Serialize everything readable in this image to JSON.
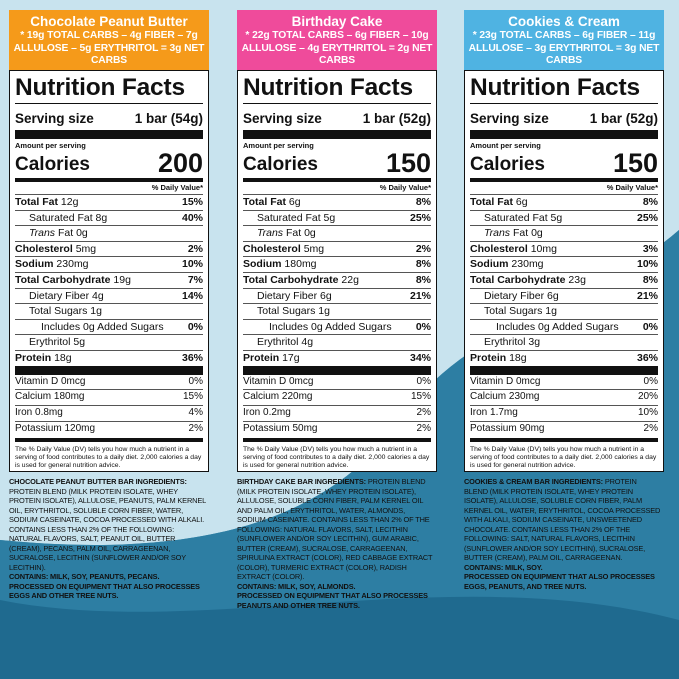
{
  "colors": {
    "background": "#3d8fb1",
    "wave_light": "#c8e3ee",
    "wave_dark": "#2d7ea3",
    "chocolate_peanut_butter": "#f59a1a",
    "birthday_cake": "#ef4b9b",
    "cookies_and_cream": "#4fb3e2"
  },
  "columns": [
    {
      "flavor": "Chocolate Peanut Butter",
      "carbs_line": "* 19g TOTAL CARBS – 4g FIBER – 7g ALLULOSE – 5g ERYTHRITOL = 3g NET CARBS",
      "title": "Nutrition Facts",
      "serving_label": "Serving size",
      "serving_value": "1 bar (54g)",
      "amount_per_serving": "Amount per serving",
      "calories_label": "Calories",
      "calories_value": "200",
      "daily_value_header": "% Daily Value*",
      "total_fat": {
        "label": "Total Fat",
        "amount": "12g",
        "pct": "15%"
      },
      "saturated_fat": {
        "label": "Saturated Fat",
        "amount": "8g",
        "pct": "40%"
      },
      "trans_fat": {
        "label": "Trans",
        "label_rest": "Fat",
        "amount": "0g"
      },
      "cholesterol": {
        "label": "Cholesterol",
        "amount": "5mg",
        "pct": "2%"
      },
      "sodium": {
        "label": "Sodium",
        "amount": "230mg",
        "pct": "10%"
      },
      "total_carb": {
        "label": "Total Carbohydrate",
        "amount": "19g",
        "pct": "7%"
      },
      "fiber": {
        "label": "Dietary Fiber",
        "amount": "4g",
        "pct": "14%"
      },
      "total_sugars": {
        "label": "Total Sugars",
        "amount": "1g"
      },
      "added_sugars": {
        "label": "Includes",
        "amount": "0g",
        "label_rest": "Added Sugars",
        "pct": "0%"
      },
      "erythritol": {
        "label": "Erythritol",
        "amount": "5g"
      },
      "protein": {
        "label": "Protein",
        "amount": "18g",
        "pct": "36%"
      },
      "vitamin_d": {
        "label": "Vitamin D",
        "amount": "0mcg",
        "pct": "0%"
      },
      "calcium": {
        "label": "Calcium",
        "amount": "180mg",
        "pct": "15%"
      },
      "iron": {
        "label": "Iron",
        "amount": "0.8mg",
        "pct": "4%"
      },
      "potassium": {
        "label": "Potassium",
        "amount": "120mg",
        "pct": "2%"
      },
      "footnote": "The % Daily Value (DV) tells you how much a nutrient in a serving of food contributes to a daily diet. 2,000 calories a day is used for general nutrition advice.",
      "ingredients_label": "CHOCOLATE PEANUT BUTTER BAR INGREDIENTS:",
      "ingredients_text": "PROTEIN BLEND (MILK PROTEIN ISOLATE, WHEY PROTEIN ISOLATE), ALLULOSE, PEANUTS, PALM KERNEL OIL, ERYTHRITOL, SOLUBLE CORN FIBER, WATER, SODIUM CASEINATE, COCOA PROCESSED WITH ALKALI. CONTAINS LESS THAN 2% OF THE FOLLOWING: NATURAL FLAVORS, SALT, PEANUT OIL, BUTTER (CREAM), PECANS, PALM OIL, CARRAGEENAN, SUCRALOSE, LECITHIN (SUNFLOWER AND/OR SOY LECITHIN).",
      "contains": "CONTAINS: MILK, SOY, PEANUTS, PECANS.",
      "processed": "PROCESSED ON EQUIPMENT THAT ALSO PROCESSES EGGS AND OTHER TREE NUTS."
    },
    {
      "flavor": "Birthday Cake",
      "carbs_line": "* 22g TOTAL CARBS – 6g FIBER – 10g ALLULOSE – 4g ERYTHRITOL = 2g NET CARBS",
      "title": "Nutrition Facts",
      "serving_label": "Serving size",
      "serving_value": "1 bar (52g)",
      "amount_per_serving": "Amount per serving",
      "calories_label": "Calories",
      "calories_value": "150",
      "daily_value_header": "% Daily Value*",
      "total_fat": {
        "label": "Total Fat",
        "amount": "6g",
        "pct": "8%"
      },
      "saturated_fat": {
        "label": "Saturated Fat",
        "amount": "5g",
        "pct": "25%"
      },
      "trans_fat": {
        "label": "Trans",
        "label_rest": "Fat",
        "amount": "0g"
      },
      "cholesterol": {
        "label": "Cholesterol",
        "amount": "5mg",
        "pct": "2%"
      },
      "sodium": {
        "label": "Sodium",
        "amount": "180mg",
        "pct": "8%"
      },
      "total_carb": {
        "label": "Total Carbohydrate",
        "amount": "22g",
        "pct": "8%"
      },
      "fiber": {
        "label": "Dietary Fiber",
        "amount": "6g",
        "pct": "21%"
      },
      "total_sugars": {
        "label": "Total Sugars",
        "amount": "1g"
      },
      "added_sugars": {
        "label": "Includes",
        "amount": "0g",
        "label_rest": "Added Sugars",
        "pct": "0%"
      },
      "erythritol": {
        "label": "Erythritol",
        "amount": "4g"
      },
      "protein": {
        "label": "Protein",
        "amount": "17g",
        "pct": "34%"
      },
      "vitamin_d": {
        "label": "Vitamin D",
        "amount": "0mcg",
        "pct": "0%"
      },
      "calcium": {
        "label": "Calcium",
        "amount": "220mg",
        "pct": "15%"
      },
      "iron": {
        "label": "Iron",
        "amount": "0.2mg",
        "pct": "2%"
      },
      "potassium": {
        "label": "Potassium",
        "amount": "50mg",
        "pct": "2%"
      },
      "footnote": "The % Daily Value (DV) tells you how much a nutrient in a serving of food contributes to a daily diet. 2,000 calories a day is used for general nutrition advice.",
      "ingredients_label": "BIRTHDAY CAKE BAR INGREDIENTS:",
      "ingredients_text": "PROTEIN BLEND (MILK PROTEIN ISOLATE, WHEY PROTEIN ISOLATE), ALLULOSE, SOLUBLE CORN FIBER, PALM KERNEL OIL AND PALM OIL, ERYTHRITOL, WATER, ALMONDS, SODIUM CASEINATE. CONTAINS LESS THAN 2% OF THE FOLLOWING: NATURAL FLAVORS, SALT, LECITHIN (SUNFLOWER AND/OR SOY LECITHIN), GUM ARABIC, BUTTER (CREAM), SUCRALOSE, CARRAGEENAN, SPIRULINA EXTRACT (COLOR), RED CABBAGE EXTRACT (COLOR), TURMERIC EXTRACT (COLOR), RADISH EXTRACT (COLOR).",
      "contains": "CONTAINS: MILK, SOY, ALMONDS.",
      "processed": "PROCESSED ON EQUIPMENT THAT ALSO PROCESSES PEANUTS AND OTHER TREE NUTS."
    },
    {
      "flavor": "Cookies & Cream",
      "carbs_line": "* 23g TOTAL CARBS – 6g FIBER – 11g ALLULOSE – 3g ERYTHRITOL = 3g NET CARBS",
      "title": "Nutrition Facts",
      "serving_label": "Serving size",
      "serving_value": "1 bar (52g)",
      "amount_per_serving": "Amount per serving",
      "calories_label": "Calories",
      "calories_value": "150",
      "daily_value_header": "% Daily Value*",
      "total_fat": {
        "label": "Total Fat",
        "amount": "6g",
        "pct": "8%"
      },
      "saturated_fat": {
        "label": "Saturated Fat",
        "amount": "5g",
        "pct": "25%"
      },
      "trans_fat": {
        "label": "Trans",
        "label_rest": "Fat",
        "amount": "0g"
      },
      "cholesterol": {
        "label": "Cholesterol",
        "amount": "10mg",
        "pct": "3%"
      },
      "sodium": {
        "label": "Sodium",
        "amount": "230mg",
        "pct": "10%"
      },
      "total_carb": {
        "label": "Total Carbohydrate",
        "amount": "23g",
        "pct": "8%"
      },
      "fiber": {
        "label": "Dietary Fiber",
        "amount": "6g",
        "pct": "21%"
      },
      "total_sugars": {
        "label": "Total Sugars",
        "amount": "1g"
      },
      "added_sugars": {
        "label": "Includes",
        "amount": "0g",
        "label_rest": "Added Sugars",
        "pct": "0%"
      },
      "erythritol": {
        "label": "Erythritol",
        "amount": "3g"
      },
      "protein": {
        "label": "Protein",
        "amount": "18g",
        "pct": "36%"
      },
      "vitamin_d": {
        "label": "Vitamin D",
        "amount": "0mcg",
        "pct": "0%"
      },
      "calcium": {
        "label": "Calcium",
        "amount": "230mg",
        "pct": "20%"
      },
      "iron": {
        "label": "Iron",
        "amount": "1.7mg",
        "pct": "10%"
      },
      "potassium": {
        "label": "Potassium",
        "amount": "90mg",
        "pct": "2%"
      },
      "footnote": "The % Daily Value (DV) tells you how much a nutrient in a serving of food contributes to a daily diet. 2,000 calories a day is used for general nutrition advice.",
      "ingredients_label": "COOKIES & CREAM BAR INGREDIENTS:",
      "ingredients_text": "PROTEIN BLEND (MILK PROTEIN ISOLATE, WHEY PROTEIN ISOLATE), ALLULOSE, SOLUBLE CORN FIBER, PALM KERNEL OIL, WATER, ERYTHRITOL, COCOA PROCESSED WITH ALKALI, SODIUM CASEINATE, UNSWEETENED CHOCOLATE. CONTAINS LESS THAN 2% OF THE FOLLOWING: SALT, NATURAL FLAVORS, LECITHIN (SUNFLOWER AND/OR SOY LECITHIN), SUCRALOSE, BUTTER (CREAM), PALM OIL, CARRAGEENAN.",
      "contains": "CONTAINS: MILK, SOY.",
      "processed": "PROCESSED ON EQUIPMENT THAT ALSO PROCESSES EGGS, PEANUTS, AND TREE NUTS."
    }
  ]
}
